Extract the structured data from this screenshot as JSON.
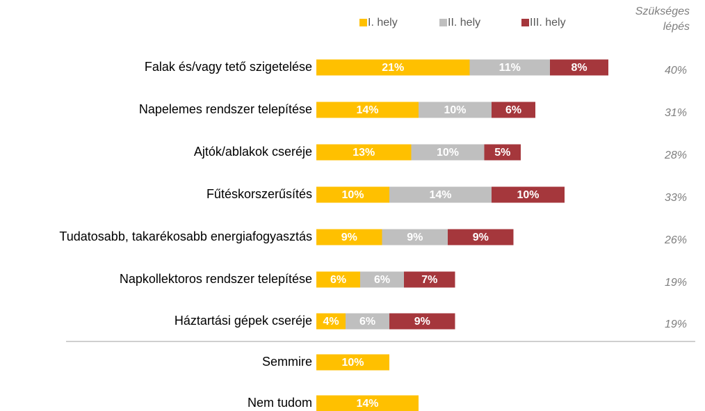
{
  "chart_data": {
    "type": "stacked-bar-horizontal",
    "categories": [
      "Falak és/vagy tető szigetelése",
      "Napelemes rendszer telepítése",
      "Ajtók/ablakok cseréje",
      "Fűtéskorszerűsítés",
      "Tudatosabb, takarékosabb energiafogyasztás",
      "Napkollektoros rendszer telepítése",
      "Háztartási gépek cseréje",
      "Semmire",
      "Nem tudom"
    ],
    "series": [
      {
        "name": "I. hely",
        "color": "#FFC000",
        "values": [
          21,
          14,
          13,
          10,
          9,
          6,
          4,
          10,
          14
        ],
        "value_labels": [
          "21%",
          "14%",
          "13%",
          "10%",
          "9%",
          "6%",
          "4%",
          "10%",
          "14%"
        ]
      },
      {
        "name": "II. hely",
        "color": "#BFBFBF",
        "values": [
          11,
          10,
          10,
          14,
          9,
          6,
          6,
          null,
          null
        ],
        "value_labels": [
          "11%",
          "10%",
          "10%",
          "14%",
          "9%",
          "6%",
          "6%",
          null,
          null
        ]
      },
      {
        "name": "III. hely",
        "color": "#A5373C",
        "values": [
          8,
          6,
          5,
          10,
          9,
          7,
          9,
          null,
          null
        ],
        "value_labels": [
          "8%",
          "6%",
          "5%",
          "10%",
          "9%",
          "7%",
          "9%",
          null,
          null
        ]
      }
    ],
    "total_title": "Szükséges lépés",
    "totals": [
      40,
      31,
      28,
      33,
      26,
      19,
      19,
      null,
      null
    ],
    "total_labels": [
      "40%",
      "31%",
      "28%",
      "33%",
      "26%",
      "19%",
      "19%",
      null,
      null
    ],
    "legend": "top"
  }
}
